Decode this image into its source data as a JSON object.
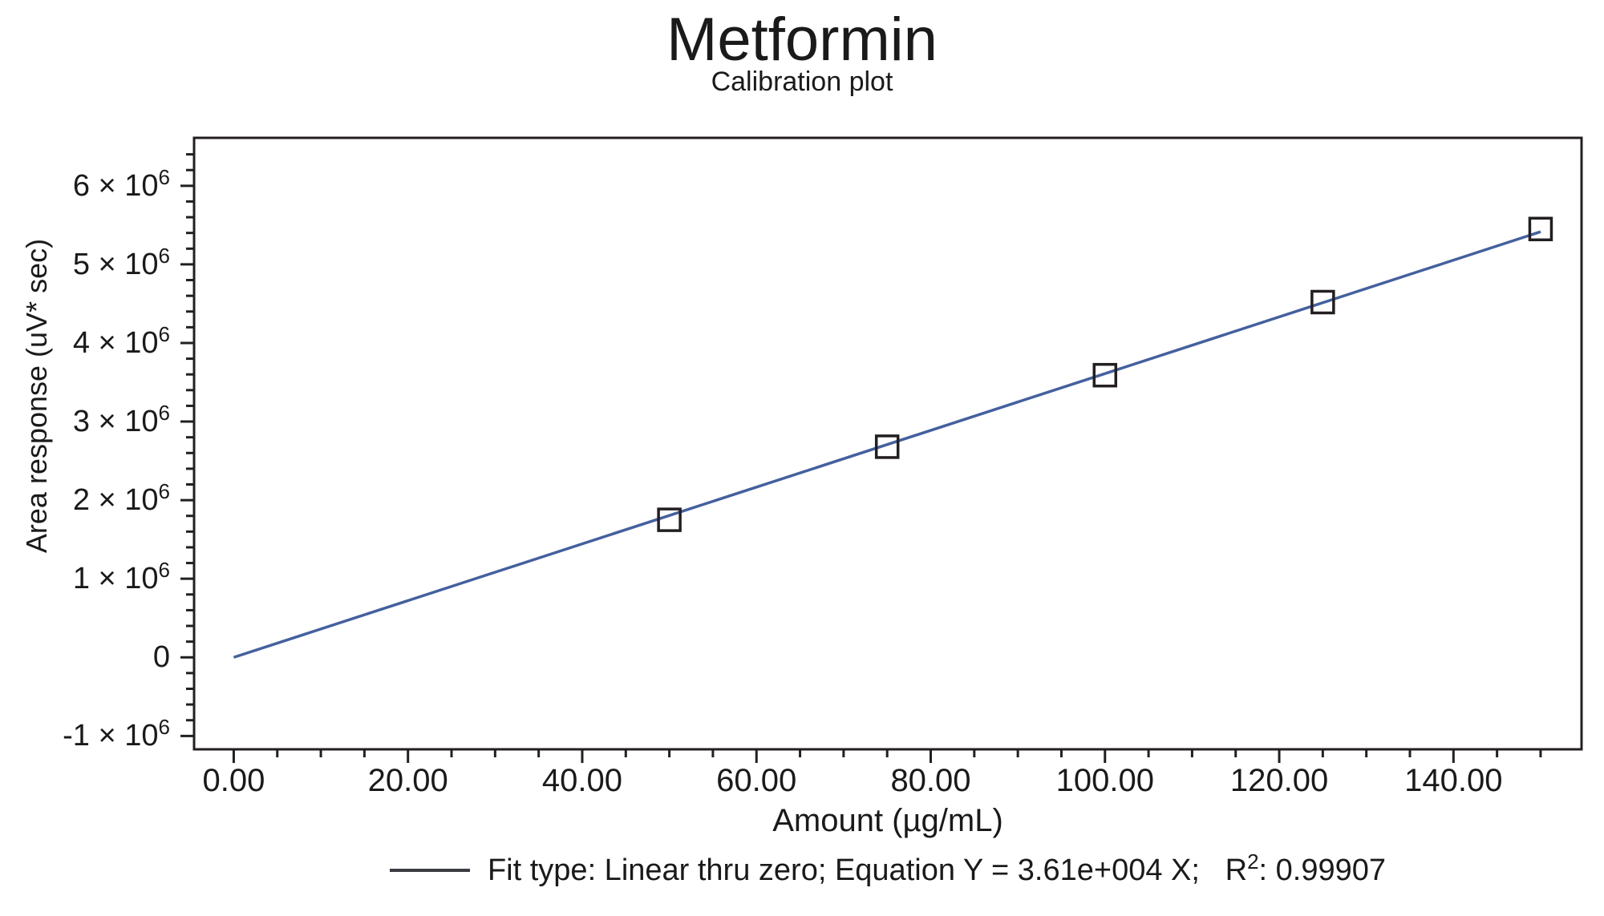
{
  "colors": {
    "background": "#ffffff",
    "fit_line": "#44609e",
    "marker_stroke": "#231f20",
    "axis": "#231f20",
    "text": "#1a1a1a",
    "legend_swatch": "#3a3c42"
  },
  "chart_data": {
    "type": "scatter",
    "title": "Metformin",
    "subtitle": "Calibration plot",
    "xlabel": "Amount (µg/mL)",
    "ylabel": "Area response (uV* sec)",
    "xlim": [
      -4.55,
      154.7
    ],
    "ylim": [
      -1170000,
      6610000
    ],
    "grid": false,
    "legend_position": "bottom-center",
    "x_major_ticks": [
      0,
      20,
      40,
      60,
      80,
      100,
      120,
      140
    ],
    "x_tick_labels": [
      "0.00",
      "20.00",
      "40.00",
      "60.00",
      "80.00",
      "100.00",
      "120.00",
      "140.00"
    ],
    "x_minor_ticks": {
      "start": 5,
      "end": 150,
      "step": 5
    },
    "y_major_ticks": [
      {
        "value": 6000000,
        "pre": "6 × 10",
        "sup": "6"
      },
      {
        "value": 5000000,
        "pre": "5 × 10",
        "sup": "6"
      },
      {
        "value": 4000000,
        "pre": "4 × 10",
        "sup": "6"
      },
      {
        "value": 3000000,
        "pre": "3 × 10",
        "sup": "6"
      },
      {
        "value": 2000000,
        "pre": "2 × 10",
        "sup": "6"
      },
      {
        "value": 1000000,
        "pre": "1 × 10",
        "sup": "6"
      },
      {
        "value": 0,
        "pre": "0",
        "sup": ""
      },
      {
        "value": -1000000,
        "pre": "-1 × 10",
        "sup": "6"
      }
    ],
    "y_minor_ticks": {
      "start": -1000000,
      "end": 6400000,
      "step": 200000
    },
    "marker": "open-square",
    "points": [
      {
        "x": 50,
        "y": 1750000
      },
      {
        "x": 75,
        "y": 2680000
      },
      {
        "x": 100,
        "y": 3590000
      },
      {
        "x": 125,
        "y": 4520000
      },
      {
        "x": 150,
        "y": 5450000
      }
    ],
    "fit": {
      "type": "Linear thru zero",
      "slope": 36100,
      "equation_label": "Y = 3.61e+004 X",
      "r_squared": 0.99907,
      "x_start": 0,
      "x_end": 150
    },
    "legend": {
      "pre": "Fit type: Linear thru zero; Equation Y = 3.61e+004 X;   R",
      "sup": "2",
      "post": ": 0.99907"
    }
  }
}
